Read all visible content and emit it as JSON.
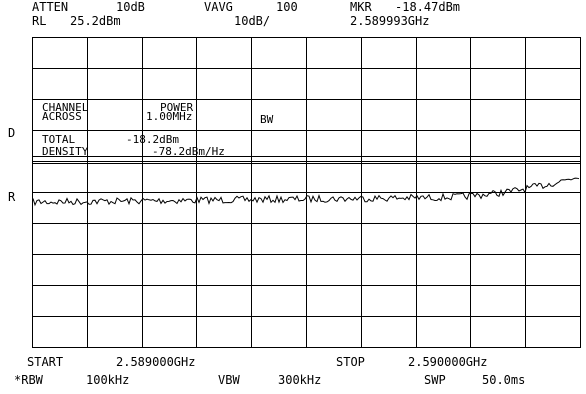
{
  "header": {
    "atten_label": "ATTEN",
    "atten_value": "10dB",
    "vavg_label": "VAVG",
    "vavg_value": "100",
    "mkr_label": "MKR",
    "mkr_value": "-18.47dBm",
    "rl_label": "RL",
    "rl_value": "25.2dBm",
    "scale_value": "10dB/",
    "mkr_freq": "2.589993GHz"
  },
  "side_markers": {
    "d": "D",
    "r": "R"
  },
  "table": {
    "channel": "CHANNEL",
    "across": "ACROSS",
    "power": "POWER",
    "bw_value": "1.00MHz",
    "bw_label": "BW",
    "total": "TOTAL",
    "total_value": "-18.2dBm",
    "density": "DENSITY",
    "density_value": "-78.2dBm/Hz"
  },
  "footer": {
    "start_label": "START",
    "start_value": "2.589000GHz",
    "stop_label": "STOP",
    "stop_value": "2.590000GHz",
    "rbw_label": "*RBW",
    "rbw_value": "100kHz",
    "vbw_label": "VBW",
    "vbw_value": "300kHz",
    "swp_label": "SWP",
    "swp_value": "50.0ms"
  },
  "colors": {
    "background": "#ffffff",
    "foreground": "#000000"
  }
}
